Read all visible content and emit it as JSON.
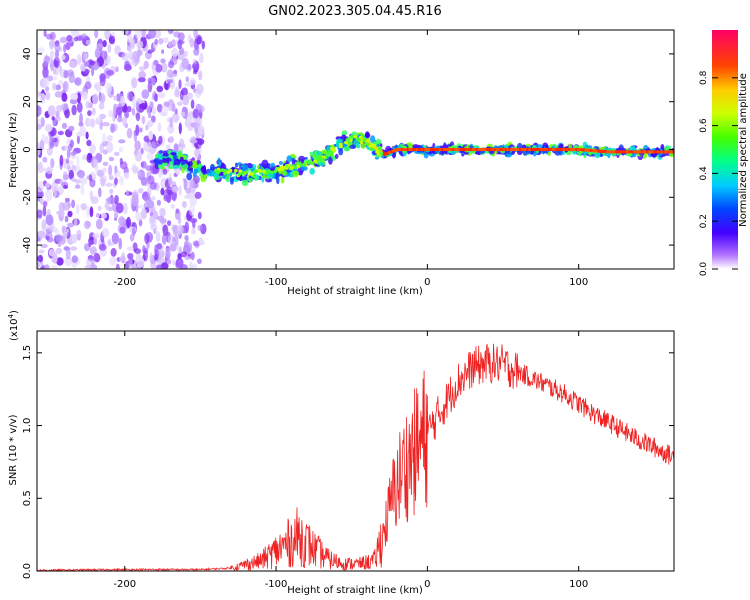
{
  "title": "GN02.2023.305.04.45.R16",
  "chart_data": [
    {
      "type": "heatmap",
      "xlabel": "Height of straight line (km)",
      "ylabel": "Frequency (Hz)",
      "xlim": [
        -258,
        163
      ],
      "ylim": [
        -50,
        50
      ],
      "xticks": [
        -200,
        -100,
        0,
        100
      ],
      "yticks": [
        -40,
        -20,
        0,
        20,
        40
      ],
      "colorbar": {
        "label": "Normalized spectral amplitude",
        "range": [
          0,
          1
        ],
        "ticks": [
          "0.0",
          "0.2",
          "0.4",
          "0.6",
          "0.8"
        ]
      },
      "centerline": {
        "x": [
          -178,
          -160,
          -140,
          -120,
          -100,
          -80,
          -65,
          -55,
          -48,
          -42,
          -35,
          -28,
          -20,
          -10,
          0,
          20,
          40,
          60,
          80,
          100,
          120,
          140,
          163
        ],
        "y": [
          -4,
          -6,
          -9,
          -10,
          -9,
          -6,
          -2,
          3,
          5,
          4,
          1,
          -2,
          0,
          0,
          0,
          0,
          0,
          0,
          0,
          0,
          -1,
          -1,
          -1
        ]
      }
    },
    {
      "type": "line",
      "xlabel": "Height of straight line (km)",
      "ylabel": "SNR (10 * v/v)",
      "yscale_label": "(x10",
      "yscale_exp": "4",
      "xlim": [
        -258,
        163
      ],
      "ylim": [
        0,
        1.65
      ],
      "xticks": [
        -200,
        -100,
        0,
        100
      ],
      "yticks": [
        "0.0",
        "0.5",
        "1.0",
        "1.5"
      ],
      "color": "#ee2222",
      "series": [
        {
          "x": [
            -258,
            -200,
            -150,
            -130,
            -110,
            -95,
            -85,
            -75,
            -65,
            -55,
            -45,
            -35,
            -28,
            -22,
            -15,
            -8,
            0,
            10,
            20,
            30,
            40,
            50,
            60,
            70,
            80,
            90,
            100,
            110,
            120,
            130,
            140,
            150,
            163
          ],
          "y": [
            0.005,
            0.01,
            0.01,
            0.02,
            0.07,
            0.17,
            0.24,
            0.15,
            0.08,
            0.05,
            0.05,
            0.07,
            0.3,
            0.55,
            0.72,
            0.82,
            0.95,
            1.12,
            1.3,
            1.4,
            1.43,
            1.42,
            1.37,
            1.32,
            1.27,
            1.22,
            1.15,
            1.08,
            1.02,
            0.96,
            0.9,
            0.85,
            0.78
          ]
        }
      ]
    }
  ]
}
